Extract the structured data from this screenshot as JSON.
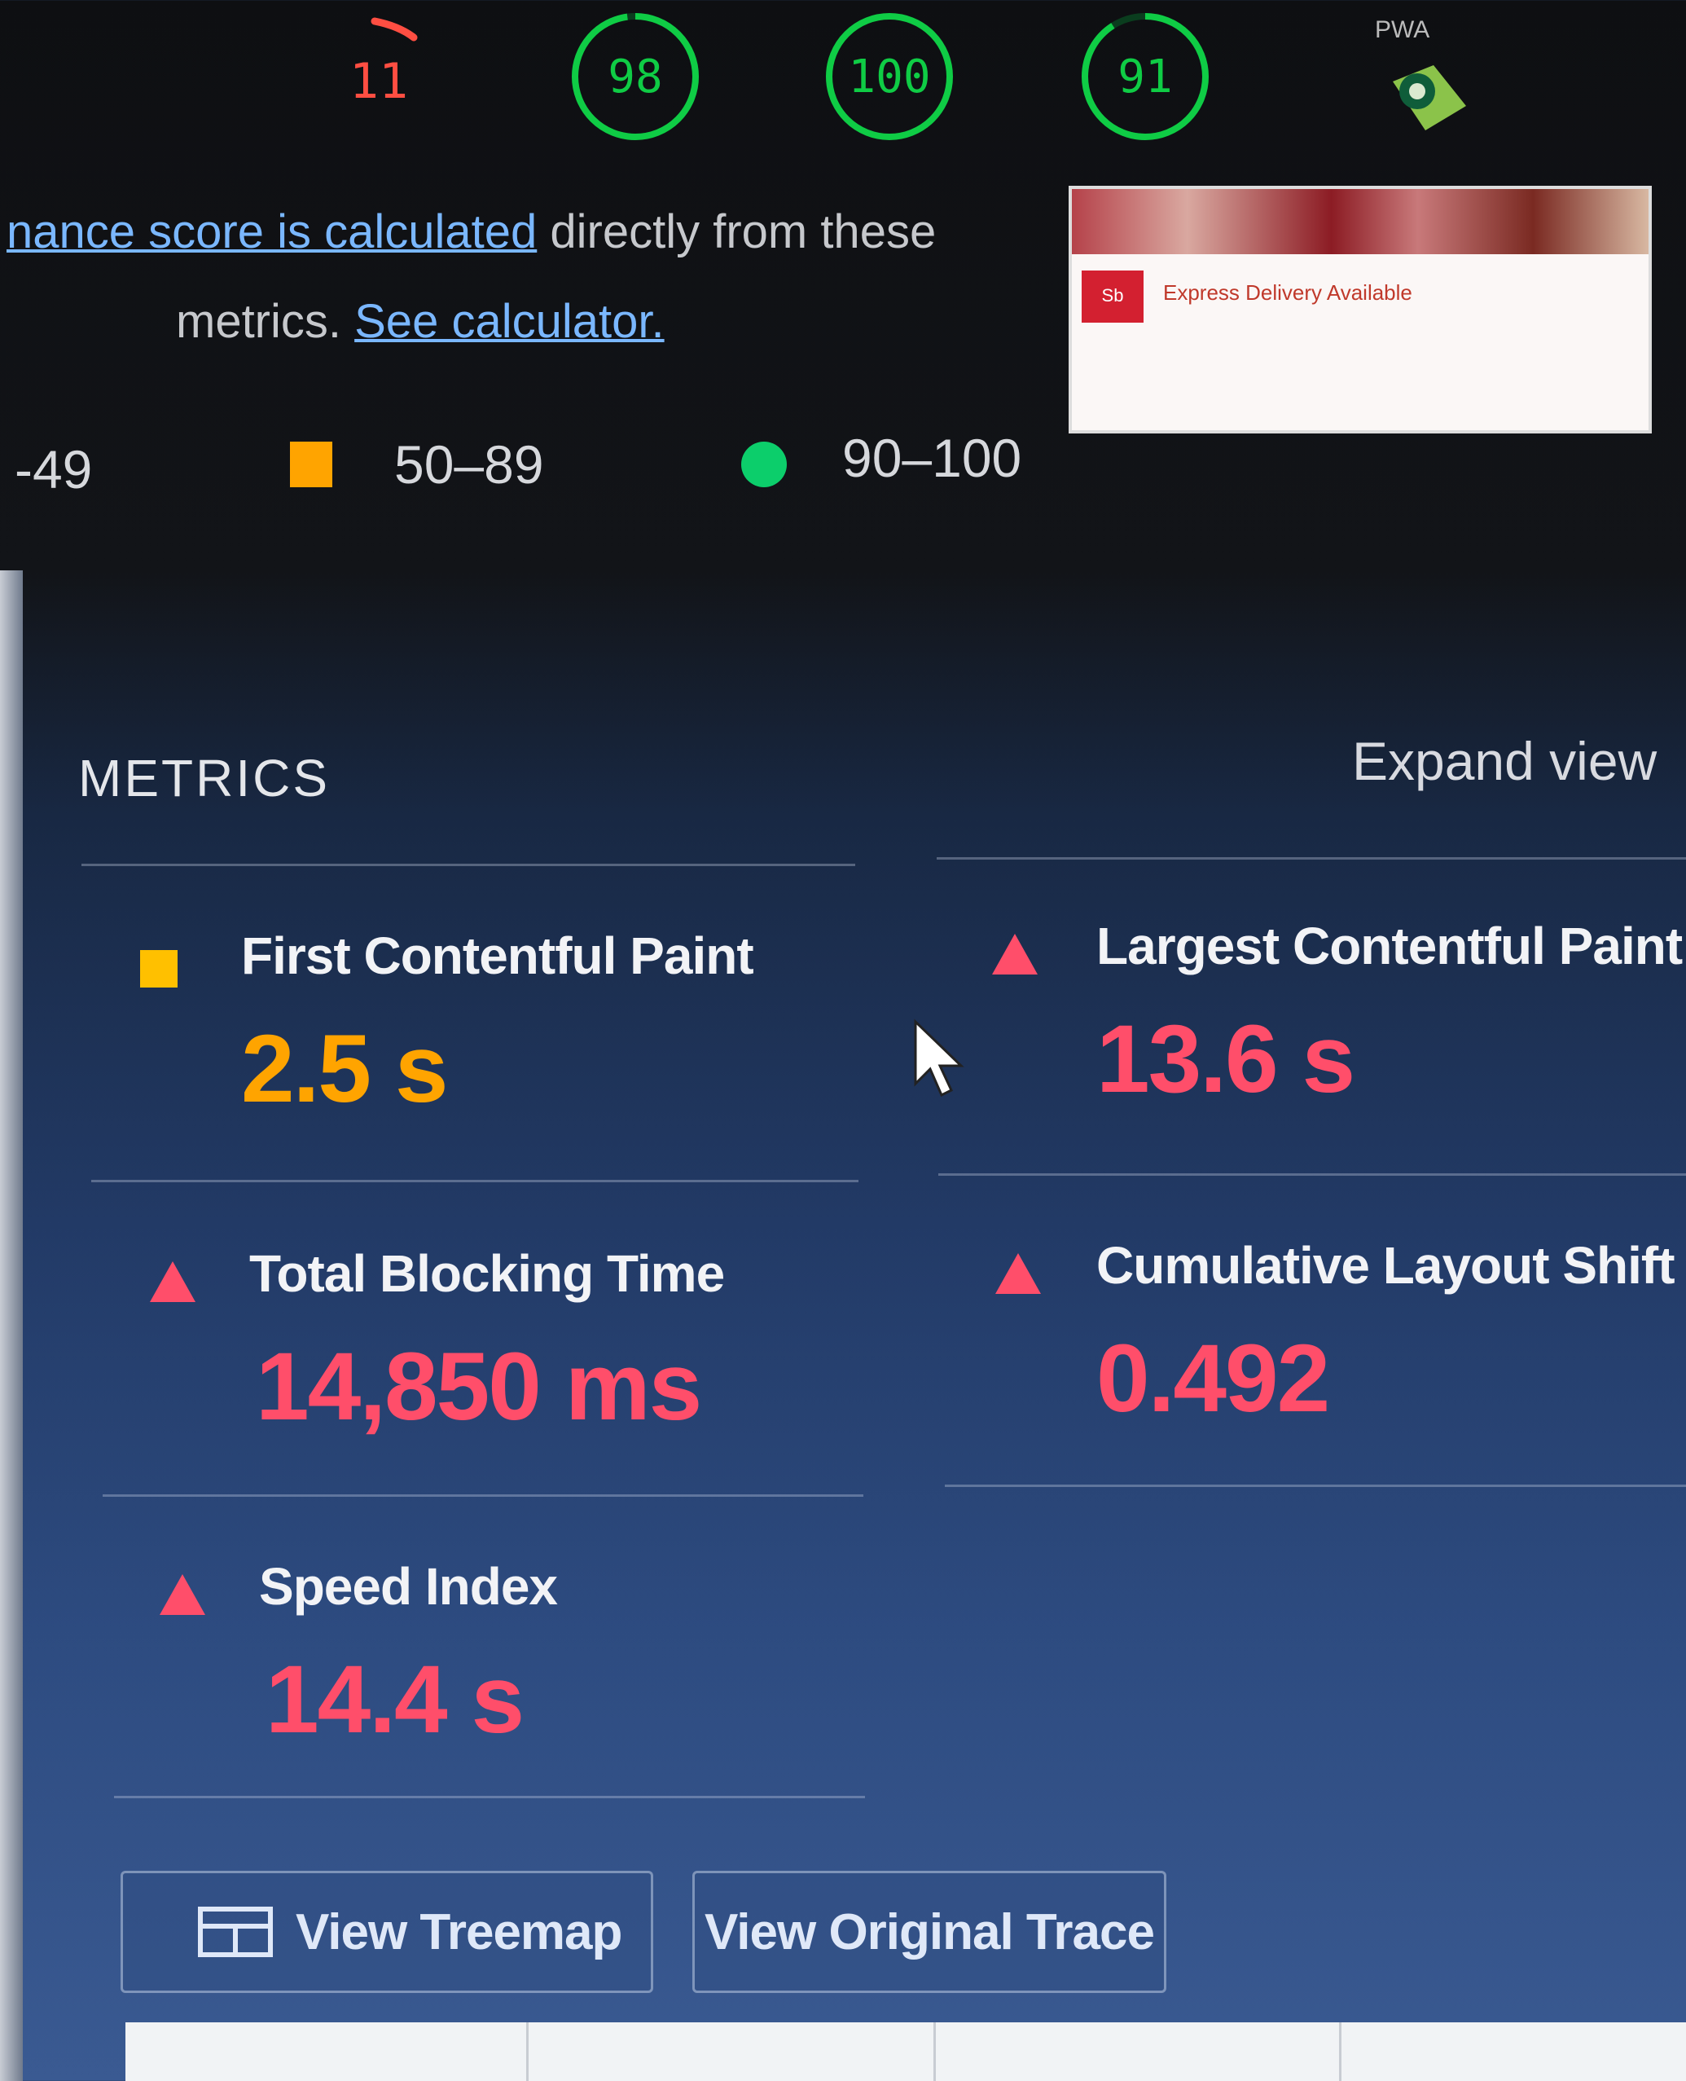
{
  "gauges": [
    {
      "label": "11",
      "score": 11,
      "status": "fail"
    },
    {
      "label": "98",
      "score": 98,
      "status": "pass"
    },
    {
      "label": "100",
      "score": 100,
      "status": "pass"
    },
    {
      "label": "91",
      "score": 91,
      "status": "pass"
    }
  ],
  "pwa_label": "PWA",
  "description": {
    "link_text": "nance score is calculated",
    "text_mid": " directly from these",
    "text_line2": "metrics. ",
    "calculator_link": "See calculator."
  },
  "thumbnail": {
    "logo_text": "Sb",
    "promo_text": "Express Delivery Available"
  },
  "legend": {
    "fail_range": "-49",
    "average_range": "50–89",
    "pass_range": "90–100"
  },
  "metrics_section": {
    "title": "METRICS",
    "expand_label": "Expand view"
  },
  "metrics": [
    {
      "name": "First Contentful Paint",
      "value": "2.5 s",
      "status": "average"
    },
    {
      "name": "Largest Contentful Paint",
      "value": "13.6 s",
      "status": "fail"
    },
    {
      "name": "Total Blocking Time",
      "value": "14,850 ms",
      "status": "fail"
    },
    {
      "name": "Cumulative Layout Shift",
      "value": "0.492",
      "status": "fail"
    },
    {
      "name": "Speed Index",
      "value": "14.4 s",
      "status": "fail"
    }
  ],
  "buttons": {
    "treemap": "View Treemap",
    "trace": "View Original Trace"
  },
  "colors": {
    "pass": "#0cce6b",
    "average": "#ffa400",
    "fail": "#ff4e6a",
    "link": "#7ab7ff"
  }
}
